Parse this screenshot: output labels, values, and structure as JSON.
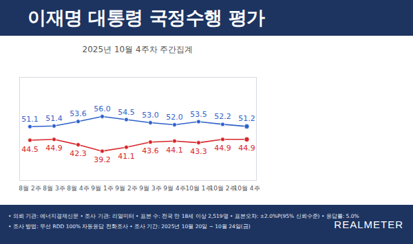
{
  "chart_data": {
    "type": "line",
    "title": "이재명 대통령 국정수행 평가",
    "subtitle": "2025년 10월 4주차 주간집계",
    "categories": [
      "8월 2주",
      "8월 3주",
      "8월 4주",
      "9월 1주",
      "9월 2주",
      "9월 3주",
      "9월 4주",
      "10월 1주",
      "10월 2주",
      "10월 4주"
    ],
    "series": [
      {
        "color": "#2f62c9",
        "values": [
          51.1,
          51.4,
          53.6,
          56.0,
          54.5,
          53.0,
          52.0,
          53.5,
          52.2,
          51.2
        ],
        "value_labels": [
          "51.1",
          "51.4",
          "53.6",
          "56.0",
          "54.5",
          "53.0",
          "52.0",
          "53.5",
          "52.2",
          "51.2"
        ]
      },
      {
        "color": "#d7262b",
        "values": [
          44.5,
          44.9,
          42.3,
          39.2,
          41.1,
          43.6,
          44.1,
          43.3,
          44.9,
          44.9
        ],
        "value_labels": [
          "44.5",
          "44.9",
          "42.3",
          "39.2",
          "41.1",
          "43.6",
          "44.1",
          "43.3",
          "44.9",
          "44.9"
        ]
      }
    ],
    "ylim": [
      25,
      75
    ],
    "yticks": [],
    "tick_labels": "x",
    "data_labels": true,
    "grid": false,
    "marker": "circle"
  },
  "footer": {
    "notes": [
      "• 의뢰 기관: 에너지경제신문 • 조사 기관: 리얼미터 • 표본 수: 전국 만 18세 이상 2,519명 • 표본오차: ±2.0%P(95% 신뢰수준) • 응답률: 5.0%",
      "• 조사 방법: 무선 RDD 100% 자동응답 전화조사 • 조사 기간: 2025년 10월 20일 ~ 10월 24일(금)"
    ],
    "logo": "REALMETER"
  }
}
